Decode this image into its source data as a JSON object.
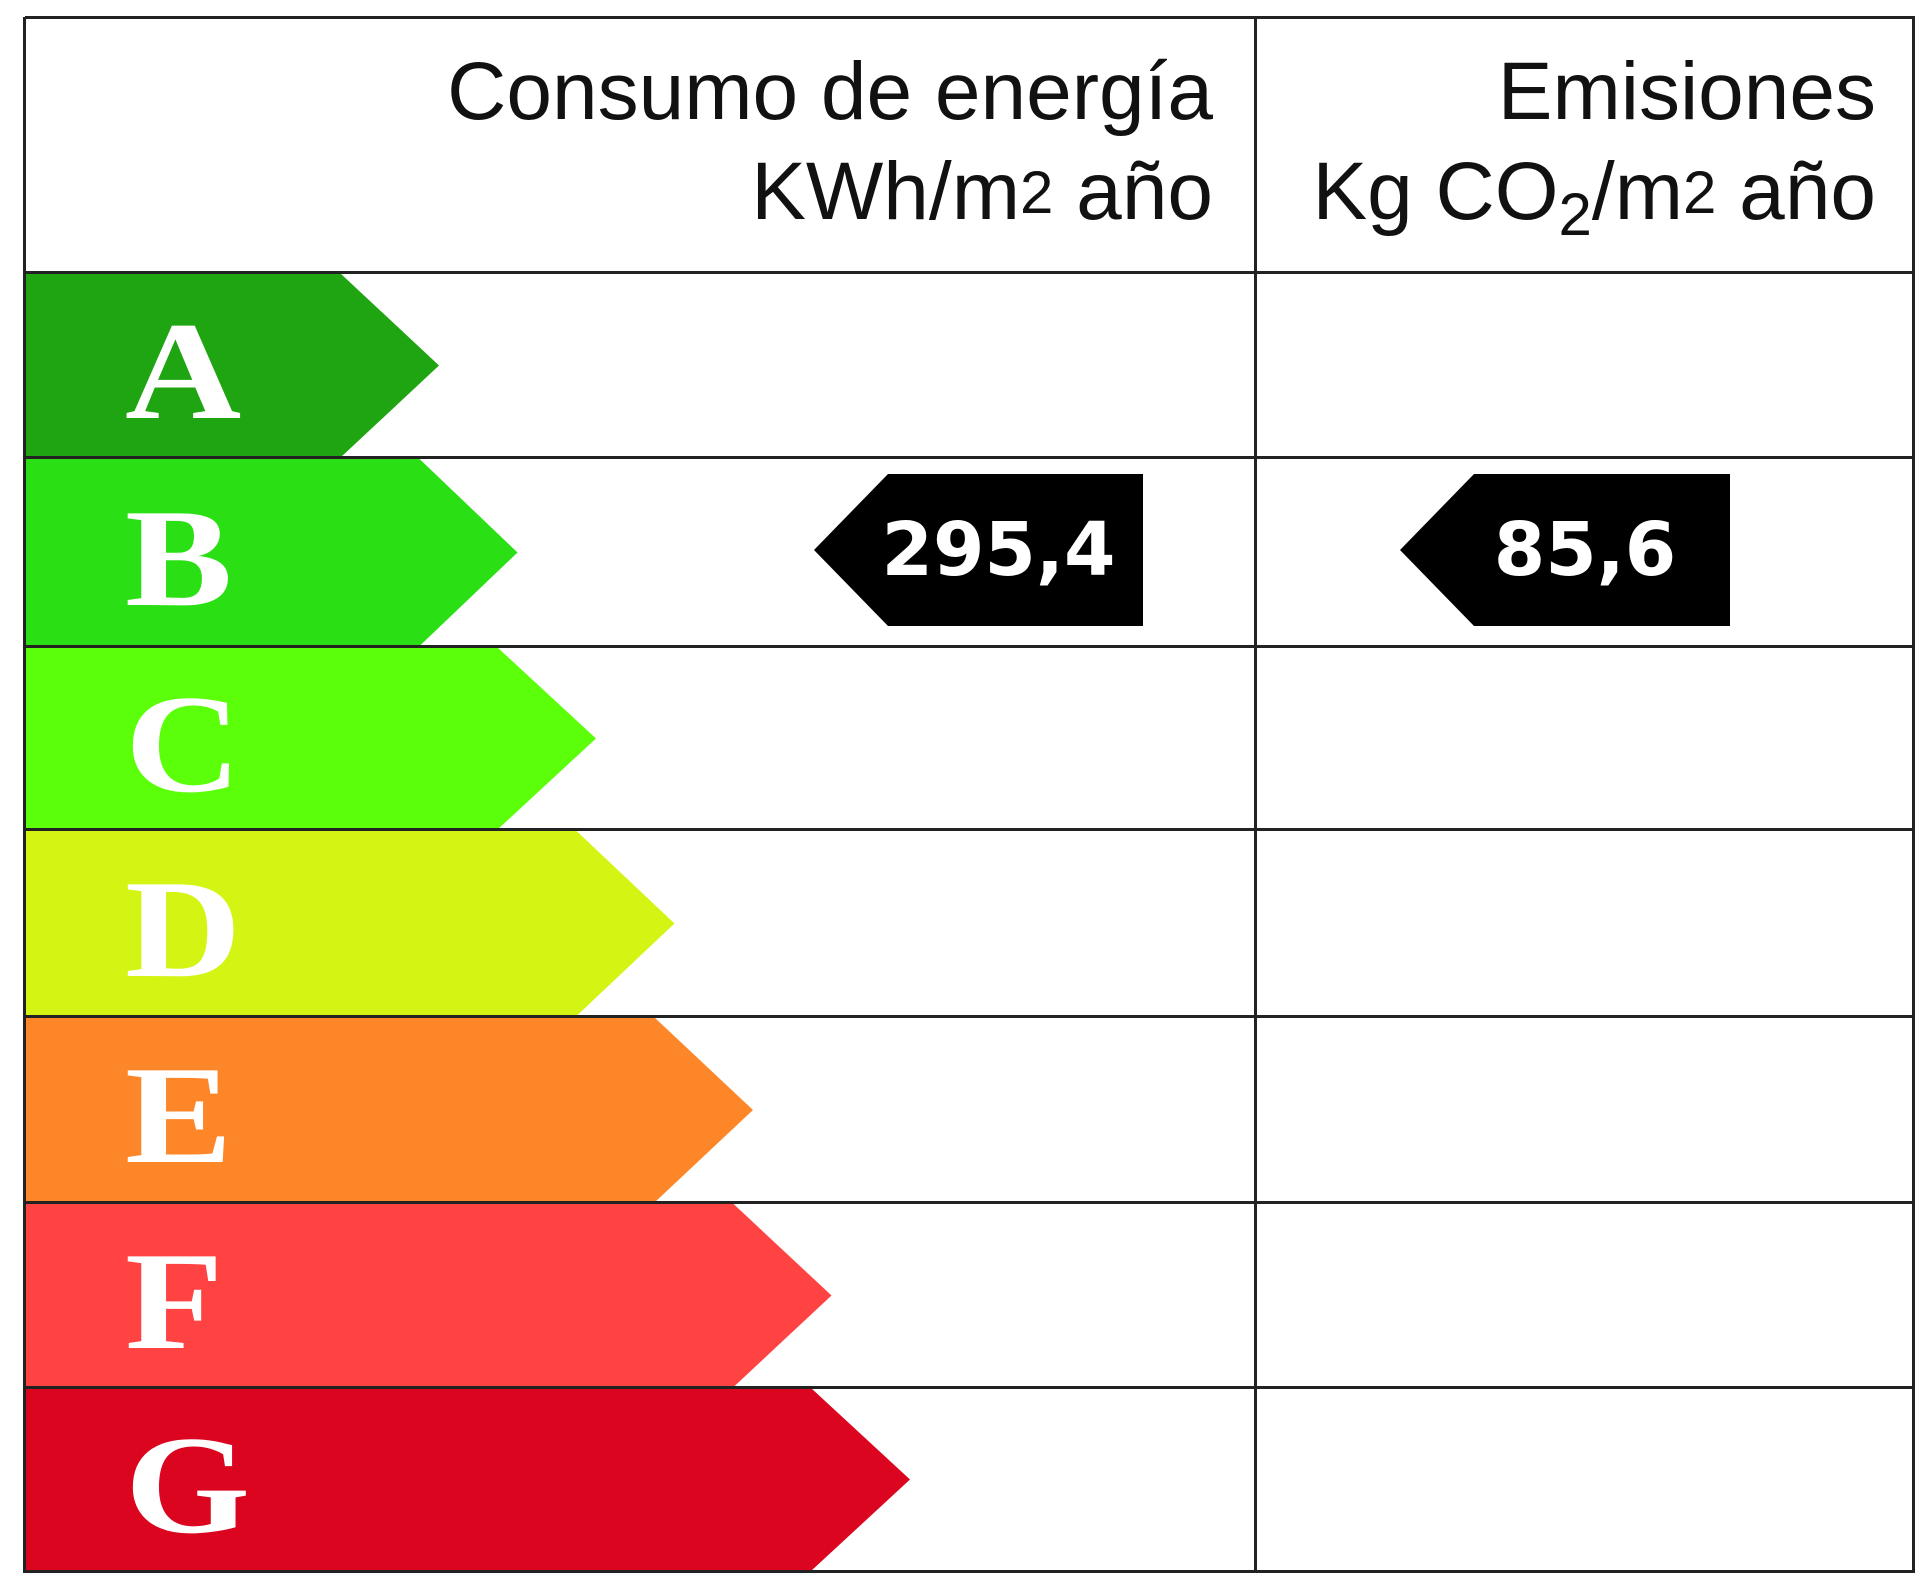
{
  "header": {
    "energy_title": "Consumo de energía",
    "energy_unit": "KWh/m2 año",
    "emissions_title": "Emisiones",
    "emissions_unit": "Kg CO2/m2 año"
  },
  "classes": [
    {
      "letter": "A",
      "color": "#1fa412"
    },
    {
      "letter": "B",
      "color": "#2ae014"
    },
    {
      "letter": "C",
      "color": "#5cff0a"
    },
    {
      "letter": "D",
      "color": "#d4f514"
    },
    {
      "letter": "E",
      "color": "#fd8628"
    },
    {
      "letter": "F",
      "color": "#fe4342"
    },
    {
      "letter": "G",
      "color": "#db0520"
    }
  ],
  "rating": {
    "class": "B",
    "energy_value": "295,4",
    "emissions_value": "85,6"
  }
}
